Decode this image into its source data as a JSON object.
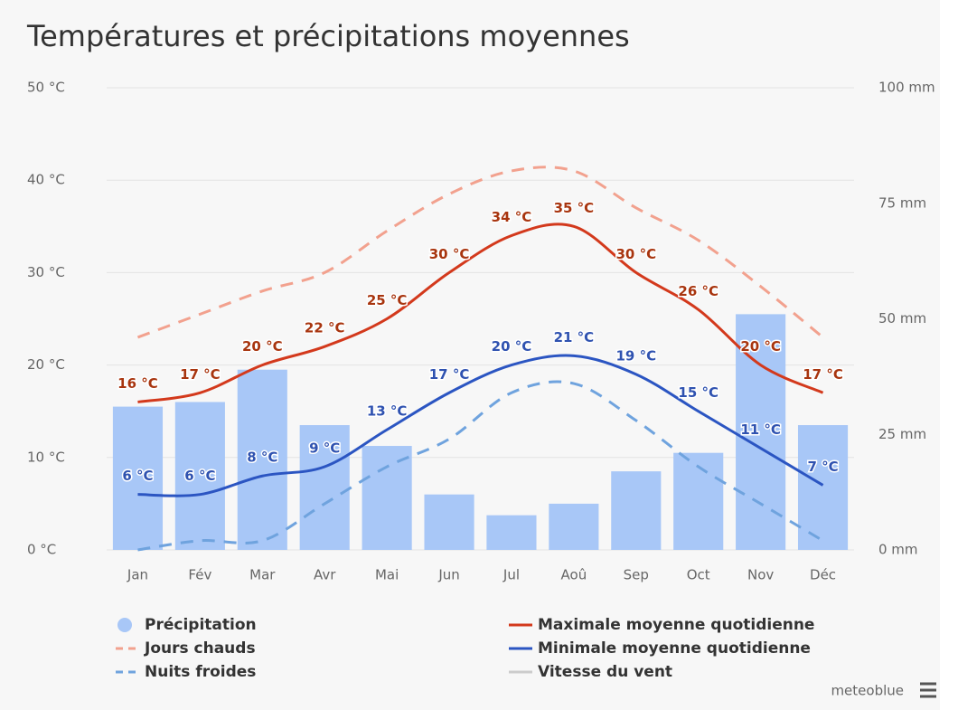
{
  "chart_data": {
    "type": "combo",
    "title": "Températures et précipitations moyennes",
    "categories": [
      "Jan",
      "Fév",
      "Mar",
      "Avr",
      "Mai",
      "Jun",
      "Jul",
      "Aoû",
      "Sep",
      "Oct",
      "Nov",
      "Déc"
    ],
    "ylim": [
      0,
      50
    ],
    "yticks": [
      {
        "value": 0,
        "label": "0 °C"
      },
      {
        "value": 10,
        "label": "10 °C"
      },
      {
        "value": 20,
        "label": "20 °C"
      },
      {
        "value": 30,
        "label": "30 °C"
      },
      {
        "value": 40,
        "label": "40 °C"
      },
      {
        "value": 50,
        "label": "50 °C"
      }
    ],
    "y2lim": [
      0,
      100
    ],
    "y2ticks": [
      {
        "value": 0,
        "label": "0 mm"
      },
      {
        "value": 25,
        "label": "25 mm"
      },
      {
        "value": 50,
        "label": "50 mm"
      },
      {
        "value": 75,
        "label": "75 mm"
      },
      {
        "value": 100,
        "label": "100 mm"
      }
    ],
    "grid": true,
    "series": [
      {
        "name": "Précipitation",
        "type": "bar",
        "axis": "y2",
        "color": "#a8c7f7",
        "values": [
          31,
          32,
          39,
          27,
          22.5,
          12,
          7.5,
          10,
          17,
          21,
          51,
          27
        ]
      },
      {
        "name": "Jours chauds",
        "type": "line",
        "dash": true,
        "color": "#f2a18e",
        "values": [
          23,
          25.5,
          28,
          30,
          34.5,
          38.5,
          41,
          41,
          37,
          33.5,
          28.5,
          23
        ]
      },
      {
        "name": "Nuits froides",
        "type": "line",
        "dash": true,
        "color": "#6fa3de",
        "values": [
          0,
          1,
          1,
          5,
          9,
          12,
          17,
          18,
          14,
          9,
          5,
          1
        ]
      },
      {
        "name": "Maximale moyenne quotidienne",
        "type": "line",
        "color": "#d3391c",
        "label_color": "#a8350f",
        "values": [
          16,
          17,
          20,
          22,
          25,
          30,
          34,
          35,
          30,
          26,
          20,
          17
        ],
        "value_labels": [
          "16 °C",
          "17 °C",
          "20 °C",
          "22 °C",
          "25 °C",
          "30 °C",
          "34 °C",
          "35 °C",
          "30 °C",
          "26 °C",
          "20 °C",
          "17 °C"
        ]
      },
      {
        "name": "Minimale moyenne quotidienne",
        "type": "line",
        "color": "#2b55c2",
        "label_color": "#2f52b0",
        "values": [
          6,
          6,
          8,
          9,
          13,
          17,
          20,
          21,
          19,
          15,
          11,
          7
        ],
        "value_labels": [
          "6 °C",
          "6 °C",
          "8 °C",
          "9 °C",
          "13 °C",
          "17 °C",
          "20 °C",
          "21 °C",
          "19 °C",
          "15 °C",
          "11 °C",
          "7 °C"
        ]
      }
    ],
    "hidden_series": [
      {
        "name": "Vitesse du vent",
        "color": "#cccccc"
      }
    ],
    "credits": "meteoblue"
  }
}
